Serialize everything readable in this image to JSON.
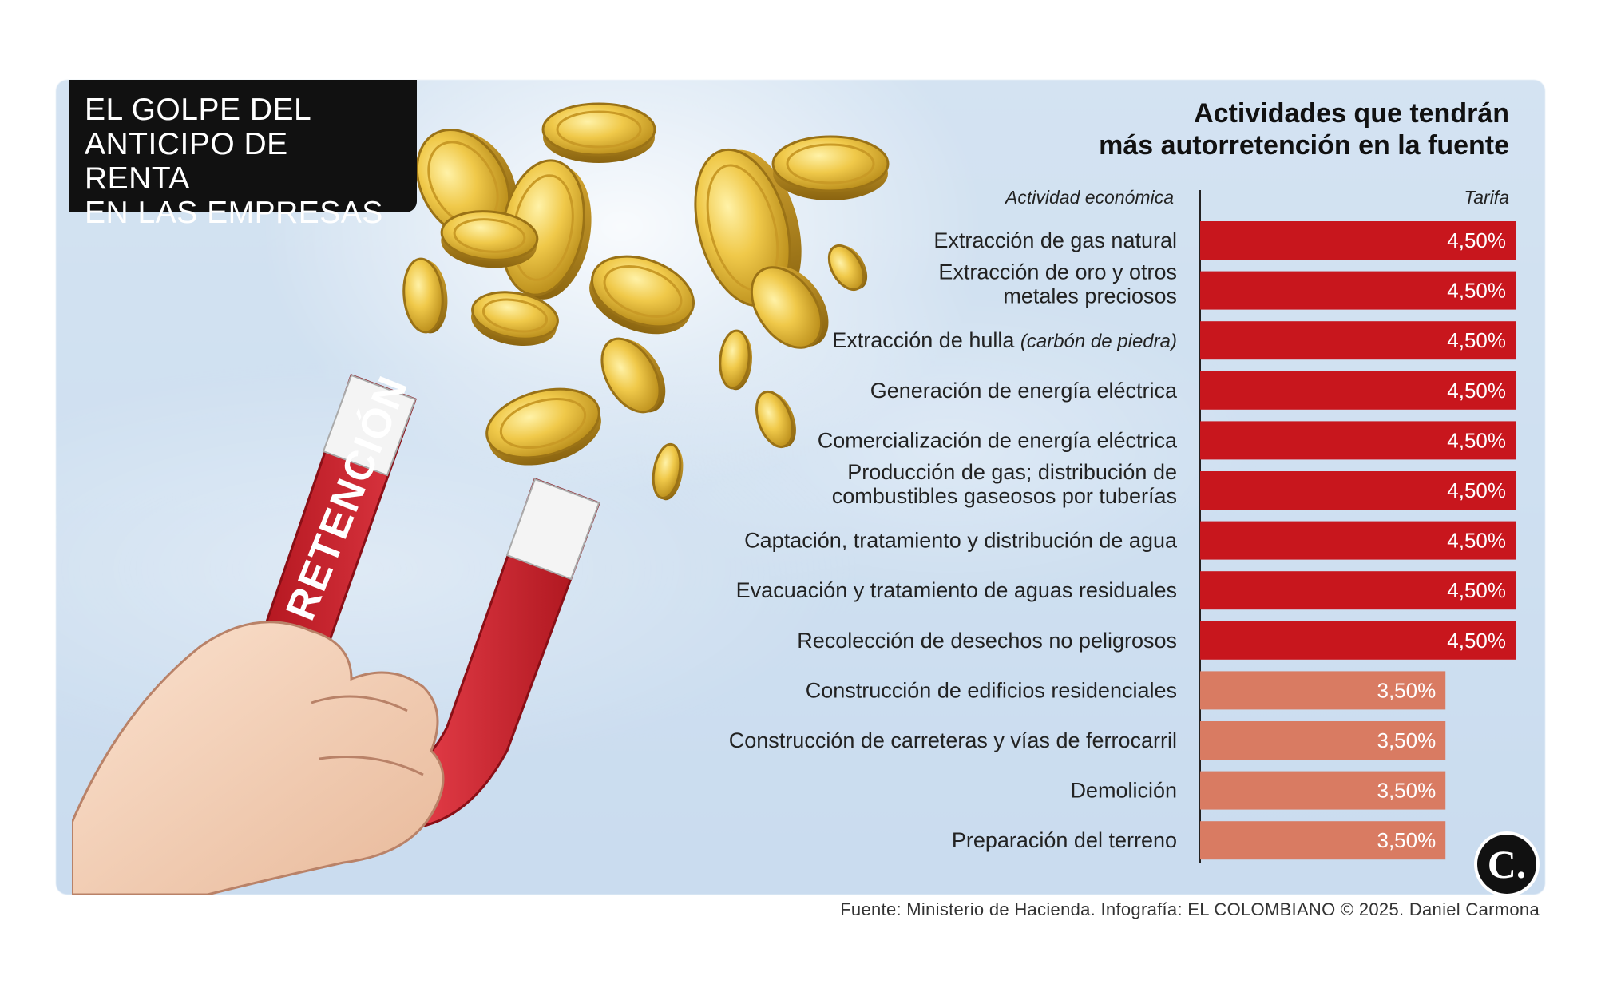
{
  "header": {
    "title_lines": [
      "EL GOLPE DEL",
      "ANTICIPO DE RENTA",
      "EN LAS EMPRESAS"
    ]
  },
  "illustration": {
    "magnet_label": "RETENCIÓN"
  },
  "footer": {
    "source": "Fuente: Ministerio de Hacienda. Infografía: EL COLOMBIANO © 2025. Daniel Carmona",
    "logo_text": "C."
  },
  "colors": {
    "bar_high": "#c8161d",
    "bar_low": "#d97b62",
    "title_box": "#111111",
    "background": "#cfe0f1"
  },
  "chart_data": {
    "type": "bar",
    "orientation": "horizontal",
    "title_lines": [
      "Actividades que tendrán",
      "más autorretención en la fuente"
    ],
    "category_header": "Actividad económica",
    "value_header": "Tarifa",
    "xlim": [
      0,
      4.5
    ],
    "categories": [
      {
        "label": "Extracción de gas natural"
      },
      {
        "label": "Extracción de oro y otros metales preciosos",
        "lines": [
          "Extracción de oro y otros",
          "metales preciosos"
        ]
      },
      {
        "label": "Extracción de hulla (carbón de piedra)",
        "main": "Extracción de hulla ",
        "italic": "(carbón de piedra)"
      },
      {
        "label": "Generación de energía eléctrica"
      },
      {
        "label": "Comercialización de energía eléctrica"
      },
      {
        "label": "Producción de gas; distribución de combustibles gaseosos por tuberías",
        "lines": [
          "Producción de gas; distribución de",
          "combustibles gaseosos por tuberías"
        ]
      },
      {
        "label": "Captación, tratamiento y distribución de agua"
      },
      {
        "label": "Evacuación y tratamiento de aguas residuales"
      },
      {
        "label": "Recolección de desechos no peligrosos"
      },
      {
        "label": "Construcción de edificios residenciales"
      },
      {
        "label": "Construcción de carreteras y vías de ferrocarril"
      },
      {
        "label": "Demolición"
      },
      {
        "label": "Preparación del terreno"
      }
    ],
    "values": [
      4.5,
      4.5,
      4.5,
      4.5,
      4.5,
      4.5,
      4.5,
      4.5,
      4.5,
      3.5,
      3.5,
      3.5,
      3.5
    ],
    "value_labels": [
      "4,50%",
      "4,50%",
      "4,50%",
      "4,50%",
      "4,50%",
      "4,50%",
      "4,50%",
      "4,50%",
      "4,50%",
      "3,50%",
      "3,50%",
      "3,50%",
      "3,50%"
    ]
  }
}
